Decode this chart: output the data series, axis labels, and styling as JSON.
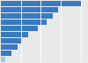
{
  "values": [
    100,
    72,
    65,
    57,
    46,
    34,
    27,
    21,
    13,
    6
  ],
  "bar_color": "#3a7abf",
  "last_bar_color": "#a8c8e8",
  "background_color": "#e8e8e8",
  "grid_color": "#ffffff",
  "xlim": [
    0,
    108
  ]
}
